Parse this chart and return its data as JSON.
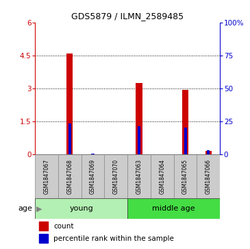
{
  "title": "GDS5879 / ILMN_2589485",
  "samples": [
    "GSM1847067",
    "GSM1847068",
    "GSM1847069",
    "GSM1847070",
    "GSM1847063",
    "GSM1847064",
    "GSM1847065",
    "GSM1847066"
  ],
  "count_values": [
    0.0,
    4.6,
    0.0,
    0.0,
    3.25,
    0.0,
    2.95,
    0.15
  ],
  "percentile_values": [
    0.0,
    1.4,
    0.05,
    0.0,
    1.3,
    0.0,
    1.22,
    0.18
  ],
  "groups": [
    {
      "label": "young",
      "start": 0,
      "end": 4,
      "color": "#90ee90"
    },
    {
      "label": "middle age",
      "start": 4,
      "end": 8,
      "color": "#4cd44c"
    }
  ],
  "ylim_left": [
    0,
    6
  ],
  "ylim_right": [
    0,
    100
  ],
  "yticks_left": [
    0,
    1.5,
    3.0,
    4.5,
    6.0
  ],
  "ytick_labels_left": [
    "0",
    "1.5",
    "3",
    "4.5",
    "6"
  ],
  "yticks_right": [
    0,
    25,
    50,
    75,
    100
  ],
  "ytick_labels_right": [
    "0",
    "25",
    "50",
    "75",
    "100%"
  ],
  "left_axis_color": "#cc0000",
  "right_axis_color": "#0000cc",
  "bar_color_count": "#cc0000",
  "bar_color_pct": "#0000cc",
  "grid_color": "black",
  "legend_count": "count",
  "legend_pct": "percentile rank within the sample",
  "sample_box_color": "#cccccc",
  "young_color": "#b3f0b3",
  "middle_age_color": "#44dd44"
}
